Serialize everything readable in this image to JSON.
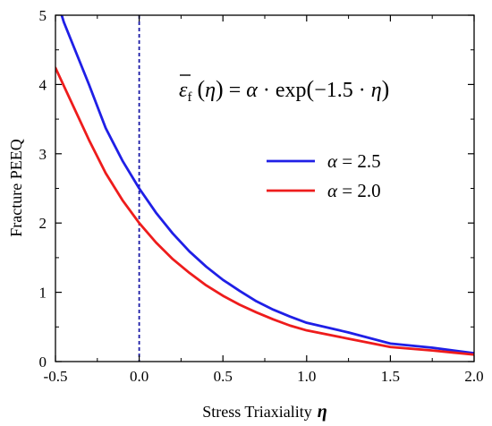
{
  "chart_data": {
    "type": "line",
    "title": "",
    "xlabel": "Stress Triaxiality",
    "xlabel_symbol": "η",
    "ylabel": "Fracture PEEQ",
    "xlim": [
      -0.5,
      2.0
    ],
    "ylim": [
      0,
      5
    ],
    "xticks": [
      "-0.5",
      "0.0",
      "0.5",
      "1.0",
      "1.5",
      "2.0"
    ],
    "yticks": [
      "0",
      "1",
      "2",
      "3",
      "4",
      "5"
    ],
    "grid": false,
    "legend_position": "center-right",
    "annotation": {
      "eps": "ε",
      "sub": "f",
      "rhs_open": "(",
      "eta": "η",
      "rhs_close": ")",
      "equals": " = ",
      "alpha": "α",
      "dot": " · ",
      "exp": "exp",
      "paren_open": "(",
      "coef": "−1.5",
      "paren_close": ")"
    },
    "reference_line": {
      "x": 0.0,
      "style": "dashed",
      "color": "#1a1aa6"
    },
    "series": [
      {
        "name": "α = 2.5",
        "legend_symbol": "α",
        "legend_value": " = 2.5",
        "color": "#1f1fe6",
        "x": [
          -0.5,
          -0.45,
          -0.3,
          -0.2,
          -0.1,
          0.0,
          0.1,
          0.2,
          0.3,
          0.4,
          0.5,
          0.6,
          0.7,
          0.8,
          0.9,
          1.0,
          1.25,
          1.5,
          1.75,
          2.0
        ],
        "y": [
          5.29,
          4.9,
          4.0,
          3.37,
          2.9,
          2.5,
          2.15,
          1.85,
          1.59,
          1.37,
          1.18,
          1.02,
          0.87,
          0.75,
          0.65,
          0.56,
          0.42,
          0.26,
          0.2,
          0.12
        ]
      },
      {
        "name": "α = 2.0",
        "legend_symbol": "α",
        "legend_value": " = 2.0",
        "color": "#ee1c1c",
        "x": [
          -0.5,
          -0.3,
          -0.2,
          -0.1,
          0.0,
          0.1,
          0.2,
          0.3,
          0.4,
          0.5,
          0.6,
          0.7,
          0.8,
          0.9,
          1.0,
          1.25,
          1.5,
          1.75,
          2.0
        ],
        "y": [
          4.24,
          3.2,
          2.72,
          2.33,
          2.0,
          1.72,
          1.48,
          1.28,
          1.1,
          0.95,
          0.82,
          0.71,
          0.61,
          0.52,
          0.45,
          0.33,
          0.21,
          0.16,
          0.1
        ]
      }
    ]
  }
}
